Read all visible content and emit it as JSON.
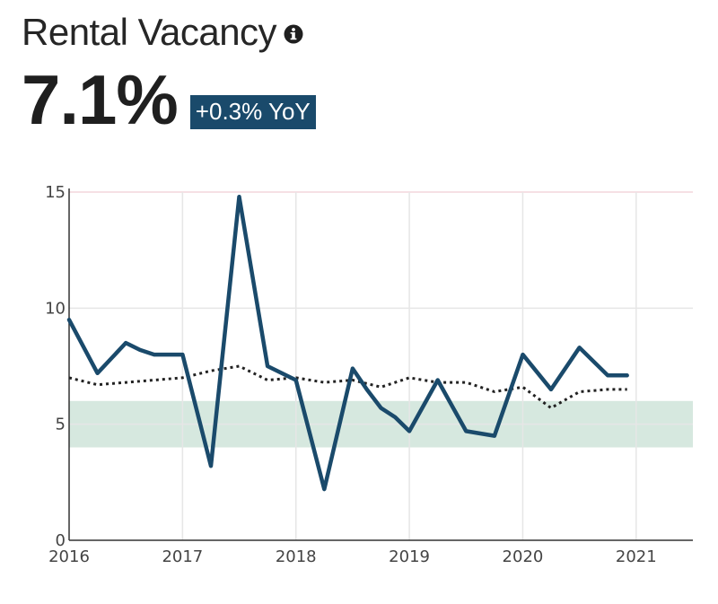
{
  "header": {
    "title": "Rental Vacancy",
    "info_icon": "info-icon",
    "value": "7.1%",
    "change": "+0.3% YoY"
  },
  "colors": {
    "series": "#1a4a6b",
    "reference": "#222222",
    "band": "#d6e8df",
    "grid": "#e6e6e6",
    "topline": "#f4d6dc",
    "badge": "#1a4a6b"
  },
  "chart_data": {
    "type": "line",
    "title": "Rental Vacancy",
    "xlabel": "",
    "ylabel": "",
    "xlim": [
      2016.0,
      2021.5
    ],
    "ylim": [
      0,
      15
    ],
    "x_ticks": [
      2016,
      2017,
      2018,
      2019,
      2020,
      2021
    ],
    "x_tick_labels": [
      "2016",
      "2017",
      "2018",
      "2019",
      "2020",
      "2021"
    ],
    "y_ticks": [
      0,
      5,
      10,
      15
    ],
    "y_tick_labels": [
      "0",
      "5",
      "10",
      "15"
    ],
    "grid": true,
    "band": {
      "y_range": [
        4,
        6
      ]
    },
    "series": [
      {
        "style": "solid",
        "points": [
          [
            2016.0,
            9.5
          ],
          [
            2016.25,
            7.2
          ],
          [
            2016.5,
            8.5
          ],
          [
            2016.625,
            8.2
          ],
          [
            2016.75,
            8.0
          ],
          [
            2017.0,
            8.0
          ],
          [
            2017.25,
            3.2
          ],
          [
            2017.5,
            14.8
          ],
          [
            2017.75,
            7.5
          ],
          [
            2018.0,
            6.9
          ],
          [
            2018.25,
            2.2
          ],
          [
            2018.5,
            7.4
          ],
          [
            2018.625,
            6.5
          ],
          [
            2018.75,
            5.7
          ],
          [
            2018.875,
            5.3
          ],
          [
            2019.0,
            4.7
          ],
          [
            2019.25,
            6.9
          ],
          [
            2019.5,
            4.7
          ],
          [
            2019.625,
            4.6
          ],
          [
            2019.75,
            4.5
          ],
          [
            2020.0,
            8.0
          ],
          [
            2020.25,
            6.5
          ],
          [
            2020.5,
            8.3
          ],
          [
            2020.75,
            7.1
          ],
          [
            2020.92,
            7.1
          ]
        ]
      },
      {
        "style": "dotted",
        "points": [
          [
            2016.0,
            7.0
          ],
          [
            2016.25,
            6.7
          ],
          [
            2016.5,
            6.8
          ],
          [
            2016.75,
            6.9
          ],
          [
            2017.0,
            7.0
          ],
          [
            2017.25,
            7.3
          ],
          [
            2017.5,
            7.5
          ],
          [
            2017.75,
            6.9
          ],
          [
            2018.0,
            7.0
          ],
          [
            2018.25,
            6.8
          ],
          [
            2018.5,
            6.9
          ],
          [
            2018.75,
            6.6
          ],
          [
            2019.0,
            7.0
          ],
          [
            2019.25,
            6.8
          ],
          [
            2019.5,
            6.8
          ],
          [
            2019.75,
            6.4
          ],
          [
            2020.0,
            6.6
          ],
          [
            2020.25,
            5.7
          ],
          [
            2020.5,
            6.4
          ],
          [
            2020.75,
            6.5
          ],
          [
            2020.92,
            6.5
          ]
        ]
      }
    ]
  }
}
